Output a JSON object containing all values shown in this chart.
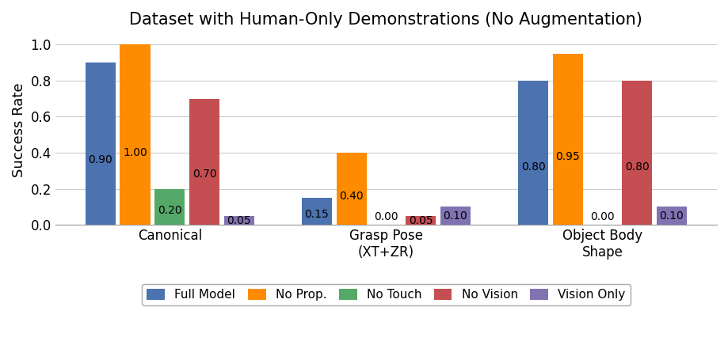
{
  "title": "Dataset with Human-Only Demonstrations (No Augmentation)",
  "ylabel": "Success Rate",
  "categories": [
    "Canonical",
    "Grasp Pose\n(XT+ZR)",
    "Object Body\nShape"
  ],
  "series": {
    "Full Model": [
      0.9,
      0.15,
      0.8
    ],
    "No Prop.": [
      1.0,
      0.4,
      0.95
    ],
    "No Touch": [
      0.2,
      0.0,
      0.0
    ],
    "No Vision": [
      0.7,
      0.05,
      0.8
    ],
    "Vision Only": [
      0.05,
      0.1,
      0.1
    ]
  },
  "colors": {
    "Full Model": "#4C72B0",
    "No Prop.": "#FF8C00",
    "No Touch": "#55A868",
    "No Vision": "#C44E52",
    "Vision Only": "#8172B2"
  },
  "ylim": [
    0,
    1.05
  ],
  "yticks": [
    0.0,
    0.2,
    0.4,
    0.6,
    0.8,
    1.0
  ],
  "title_fontsize": 15,
  "label_fontsize": 13,
  "tick_fontsize": 12,
  "legend_fontsize": 11,
  "bar_value_fontsize": 10,
  "background_color": "#FFFFFF",
  "grid_color": "#CCCCCC"
}
